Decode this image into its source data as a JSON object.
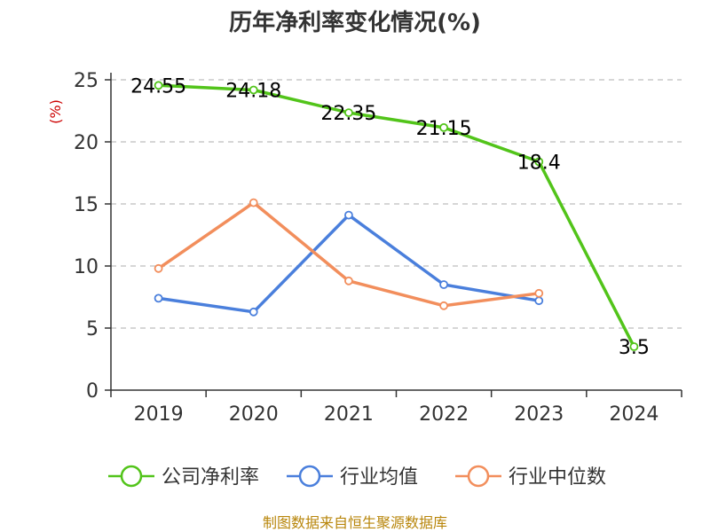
{
  "chart_data": {
    "type": "line",
    "title": "历年净利率变化情况(%)",
    "ylabel": "(%)",
    "xlabel": "",
    "categories": [
      "2019",
      "2020",
      "2021",
      "2022",
      "2023",
      "2024"
    ],
    "ylim": [
      0,
      25
    ],
    "yticks": [
      0,
      5,
      10,
      15,
      20,
      25
    ],
    "grid": true,
    "legend_position": "bottom",
    "series": [
      {
        "name": "公司净利率",
        "color": "#52c41a",
        "values": [
          24.55,
          24.18,
          22.35,
          21.15,
          18.4,
          3.5
        ],
        "labels": [
          "24.55",
          "24.18",
          "22.35",
          "21.15",
          "18.4",
          "3.5"
        ]
      },
      {
        "name": "行业均值",
        "color": "#4a7fdc",
        "values": [
          7.4,
          6.3,
          14.1,
          8.5,
          7.2,
          null
        ]
      },
      {
        "name": "行业中位数",
        "color": "#f28e5c",
        "values": [
          9.8,
          15.1,
          8.8,
          6.8,
          7.8,
          null
        ]
      }
    ]
  },
  "source": "制图数据来自恒生聚源数据库"
}
